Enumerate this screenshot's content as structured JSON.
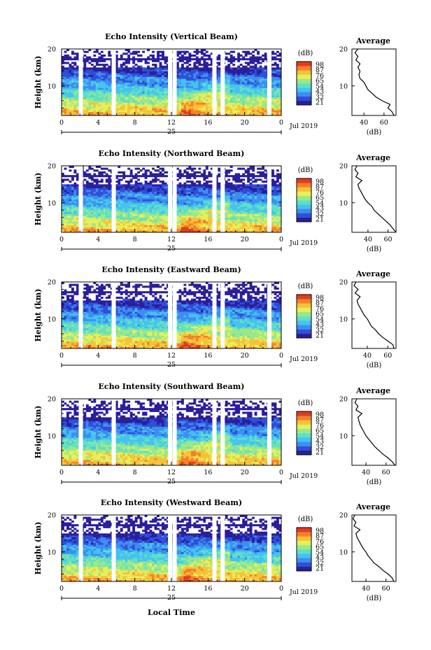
{
  "chart_data": [
    {
      "type": "heatmap",
      "title": "Echo Intensity (Vertical Beam)",
      "ylabel": "Height (km)",
      "xticks": [
        "0",
        "4",
        "8",
        "12",
        "16",
        "20",
        "0"
      ],
      "yticks": [
        "20",
        "10"
      ],
      "date_label": "25",
      "month_label": "Jul 2019",
      "xlim": [
        0,
        24
      ],
      "ylim": [
        2,
        20
      ],
      "colorbar": {
        "label": "(dB)",
        "ticks": [
          "98",
          "87",
          "76",
          "65",
          "54",
          "43",
          "32",
          "21"
        ]
      },
      "profile": {
        "title": "Average",
        "xlabel": "(dB)",
        "xticks": [
          "40",
          "60"
        ],
        "yticks": [
          "20",
          "10"
        ],
        "xlim": [
          28,
          72
        ],
        "ylim": [
          2,
          20
        ],
        "heights": [
          2,
          3,
          4,
          5,
          6,
          7,
          8,
          9,
          10,
          11,
          12,
          13,
          14,
          15,
          16,
          17,
          18,
          19,
          20
        ],
        "values": [
          70,
          68,
          64,
          66,
          58,
          52,
          48,
          44,
          42,
          40,
          36,
          35,
          36,
          34,
          36,
          32,
          34,
          31,
          34
        ]
      }
    },
    {
      "type": "heatmap",
      "title": "Echo Intensity (Northward Beam)",
      "ylabel": "Height (km)",
      "xticks": [
        "0",
        "4",
        "8",
        "12",
        "16",
        "20",
        "0"
      ],
      "yticks": [
        "20",
        "10"
      ],
      "date_label": "25",
      "month_label": "Jul 2019",
      "xlim": [
        0,
        24
      ],
      "ylim": [
        2,
        20
      ],
      "colorbar": {
        "label": "(dB)",
        "ticks": [
          "98",
          "87",
          "76",
          "65",
          "54",
          "43",
          "32",
          "21"
        ]
      },
      "profile": {
        "title": "Average",
        "xlabel": "(dB)",
        "xticks": [
          "40",
          "60"
        ],
        "yticks": [
          "20",
          "10"
        ],
        "xlim": [
          24,
          68
        ],
        "ylim": [
          2,
          20
        ],
        "heights": [
          2,
          3,
          4,
          5,
          6,
          7,
          8,
          9,
          10,
          11,
          12,
          13,
          14,
          15,
          16,
          17,
          18,
          19,
          20
        ],
        "values": [
          68,
          65,
          62,
          58,
          54,
          50,
          46,
          44,
          40,
          37,
          35,
          33,
          31,
          30,
          34,
          28,
          30,
          27,
          29
        ]
      }
    },
    {
      "type": "heatmap",
      "title": "Echo Intensity (Eastward Beam)",
      "ylabel": "Height (km)",
      "xticks": [
        "0",
        "4",
        "8",
        "12",
        "16",
        "20",
        "0"
      ],
      "yticks": [
        "20",
        "10"
      ],
      "date_label": "25",
      "month_label": "Jul 2019",
      "xlim": [
        0,
        24
      ],
      "ylim": [
        2,
        20
      ],
      "colorbar": {
        "label": "(dB)",
        "ticks": [
          "98",
          "87",
          "76",
          "65",
          "54",
          "43",
          "32",
          "21"
        ]
      },
      "profile": {
        "title": "Average",
        "xlabel": "(dB)",
        "xticks": [
          "40",
          "60"
        ],
        "yticks": [
          "20",
          "10"
        ],
        "xlim": [
          25,
          68
        ],
        "ylim": [
          2,
          20
        ],
        "heights": [
          2,
          3,
          4,
          5,
          6,
          7,
          8,
          9,
          10,
          11,
          12,
          13,
          14,
          15,
          16,
          17,
          18,
          19,
          20
        ],
        "values": [
          66,
          65,
          60,
          55,
          51,
          48,
          44,
          42,
          40,
          37,
          35,
          33,
          31,
          30,
          33,
          28,
          31,
          27,
          29
        ]
      }
    },
    {
      "type": "heatmap",
      "title": "Echo Intensity (Southward Beam)",
      "ylabel": "Height (km)",
      "xticks": [
        "0",
        "4",
        "8",
        "12",
        "16",
        "20",
        "0"
      ],
      "yticks": [
        "20",
        "10"
      ],
      "date_label": "25",
      "month_label": "Jul 2019",
      "xlim": [
        0,
        24
      ],
      "ylim": [
        2,
        20
      ],
      "colorbar": {
        "label": "(dB)",
        "ticks": [
          "98",
          "87",
          "76",
          "65",
          "54",
          "43",
          "32",
          "21"
        ]
      },
      "profile": {
        "title": "Average",
        "xlabel": "(dB)",
        "xticks": [
          "40",
          "60"
        ],
        "yticks": [
          "20",
          "10"
        ],
        "xlim": [
          26,
          70
        ],
        "ylim": [
          2,
          20
        ],
        "heights": [
          2,
          3,
          4,
          5,
          6,
          7,
          8,
          9,
          10,
          11,
          12,
          13,
          14,
          15,
          16,
          17,
          18,
          19,
          20
        ],
        "values": [
          69,
          66,
          62,
          57,
          53,
          49,
          46,
          43,
          40,
          38,
          36,
          34,
          33,
          32,
          36,
          30,
          32,
          29,
          31
        ]
      }
    },
    {
      "type": "heatmap",
      "title": "Echo Intensity (Westward Beam)",
      "ylabel": "Height (km)",
      "xticks": [
        "0",
        "4",
        "8",
        "12",
        "16",
        "20",
        "0"
      ],
      "yticks": [
        "20",
        "10"
      ],
      "date_label": "25",
      "month_label": "Jul 2019",
      "xlim": [
        0,
        24
      ],
      "ylim": [
        2,
        20
      ],
      "colorbar": {
        "label": "(dB)",
        "ticks": [
          "98",
          "87",
          "76",
          "65",
          "54",
          "43",
          "32",
          "21"
        ]
      },
      "profile": {
        "title": "Average",
        "xlabel": "(dB)",
        "xticks": [
          "40",
          "60"
        ],
        "yticks": [
          "20",
          "10"
        ],
        "xlim": [
          26,
          70
        ],
        "ylim": [
          2,
          20
        ],
        "heights": [
          2,
          3,
          4,
          5,
          6,
          7,
          8,
          9,
          10,
          11,
          12,
          13,
          14,
          15,
          16,
          17,
          18,
          19,
          20
        ],
        "values": [
          68,
          66,
          62,
          57,
          53,
          48,
          45,
          42,
          40,
          37,
          35,
          33,
          31,
          30,
          34,
          28,
          30,
          27,
          29
        ]
      }
    }
  ],
  "footer": {
    "xlabel": "Local Time"
  },
  "colormap": [
    "#2a1e9c",
    "#2f4fd8",
    "#3d8ef0",
    "#45c2f0",
    "#5fe0c4",
    "#9be88a",
    "#e6ef5a",
    "#f7c238",
    "#f2822a",
    "#e23b1f"
  ]
}
